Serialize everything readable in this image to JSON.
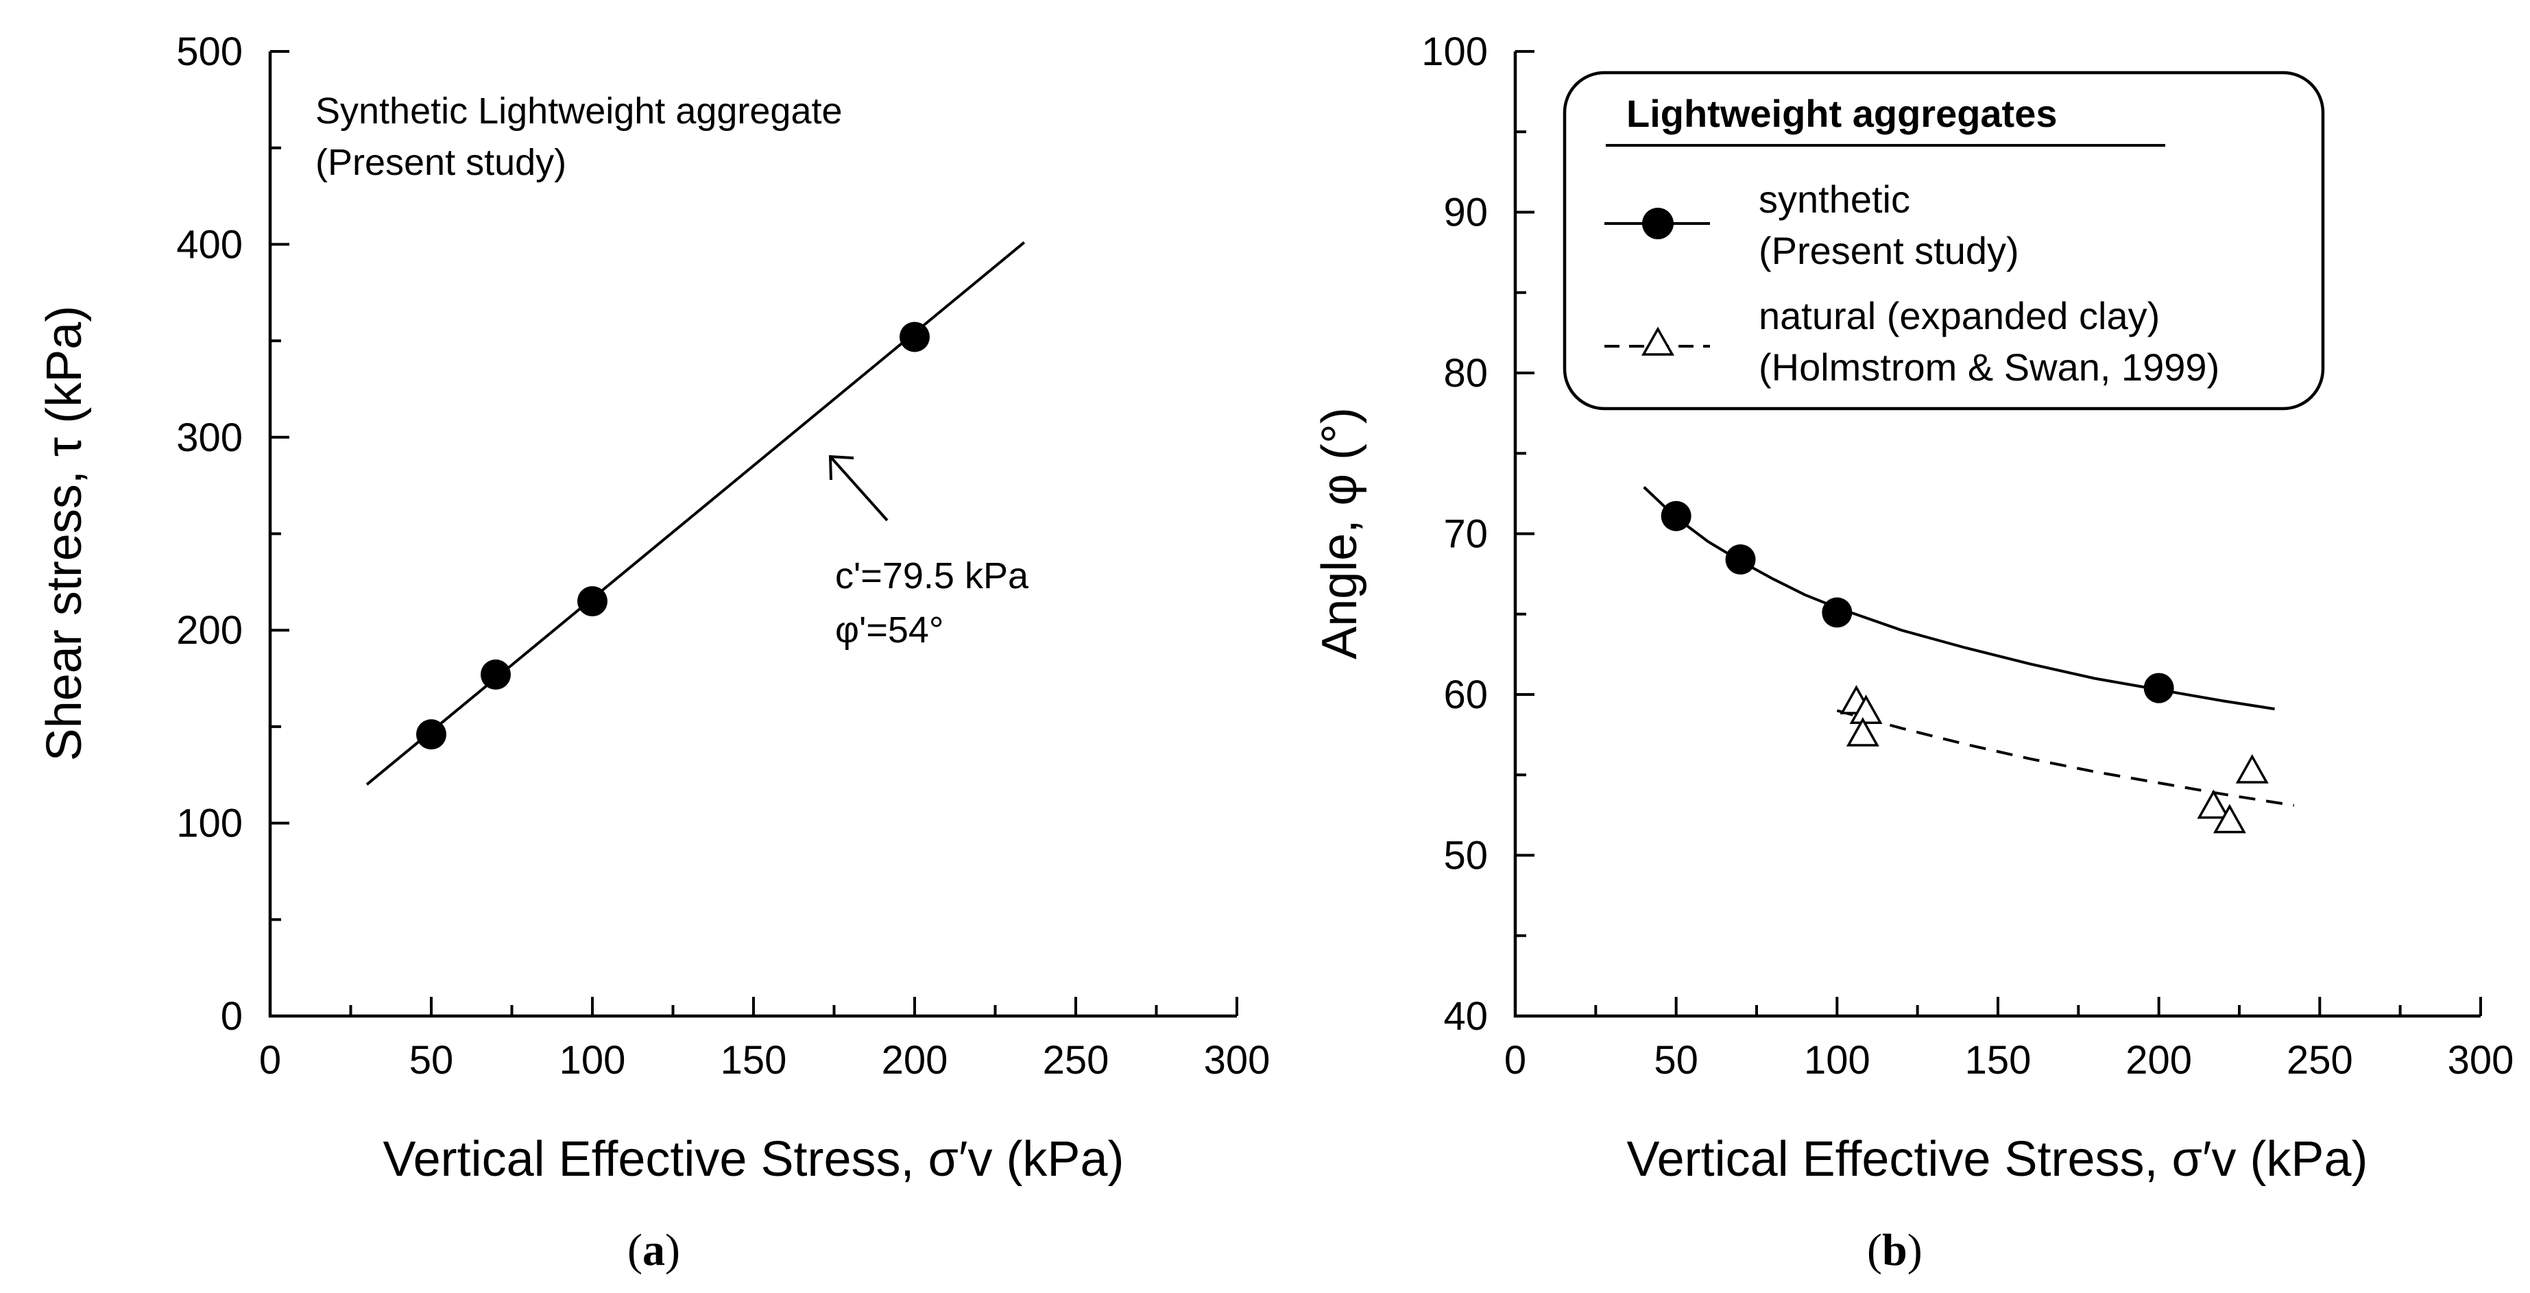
{
  "chart_data": [
    {
      "panel": "a",
      "type": "scatter",
      "xlabel": "Vertical Effective Stress, σ′v (kPa)",
      "ylabel": "Shear stress, τ (kPa)",
      "xlim": [
        0,
        300
      ],
      "ylim": [
        0,
        500
      ],
      "xticks": [
        "0",
        "50",
        "100",
        "150",
        "200",
        "250",
        "300"
      ],
      "yticks": [
        "0",
        "100",
        "200",
        "300",
        "400",
        "500"
      ],
      "caption": "a",
      "annotation_title": [
        "Synthetic Lightweight aggregate",
        "(Present study)"
      ],
      "fit_annotation": [
        "c'=79.5 kPa",
        "φ'=54°"
      ],
      "series": [
        {
          "name": "synthetic",
          "marker": "filled-circle",
          "x": [
            50,
            70,
            100,
            200
          ],
          "y": [
            146,
            177,
            215,
            352
          ]
        }
      ],
      "fit_line": {
        "style": "solid",
        "x": [
          30,
          234
        ],
        "y": [
          120,
          401
        ]
      }
    },
    {
      "panel": "b",
      "type": "scatter",
      "xlabel": "Vertical Effective Stress, σ′v (kPa)",
      "ylabel": "Angle, φ (°)",
      "xlim": [
        0,
        300
      ],
      "ylim": [
        40,
        100
      ],
      "xticks": [
        "0",
        "50",
        "100",
        "150",
        "200",
        "250",
        "300"
      ],
      "yticks": [
        "40",
        "50",
        "60",
        "70",
        "80",
        "90",
        "100"
      ],
      "caption": "b",
      "legend": {
        "title": "Lightweight aggregates",
        "position": "top-right",
        "entries": [
          {
            "label": "synthetic",
            "sublabel": "(Present study)",
            "marker": "filled-circle",
            "line": "solid"
          },
          {
            "label": "natural (expanded clay)",
            "sublabel": "(Holmstrom & Swan, 1999)",
            "marker": "open-triangle",
            "line": "dashed"
          }
        ]
      },
      "series": [
        {
          "name": "synthetic",
          "marker": "filled-circle",
          "x": [
            50,
            70,
            100,
            200
          ],
          "y": [
            71.1,
            68.4,
            65.1,
            60.4
          ]
        },
        {
          "name": "natural (expanded clay)",
          "marker": "open-triangle",
          "x": [
            106,
            109,
            108,
            217,
            222,
            229
          ],
          "y": [
            59.5,
            58.9,
            57.5,
            53.0,
            52.1,
            55.2
          ]
        }
      ],
      "fit_curves": [
        {
          "series": "synthetic",
          "style": "solid",
          "x": [
            40,
            50,
            60,
            70,
            80,
            90,
            100,
            120,
            140,
            160,
            180,
            200,
            220,
            236
          ],
          "y": [
            72.9,
            71.0,
            69.5,
            68.3,
            67.2,
            66.2,
            65.4,
            64.0,
            62.9,
            61.9,
            61.0,
            60.3,
            59.6,
            59.1
          ]
        },
        {
          "series": "natural (expanded clay)",
          "style": "dashed",
          "x": [
            100,
            120,
            140,
            160,
            180,
            200,
            220,
            242
          ],
          "y": [
            59.0,
            57.9,
            56.9,
            56.0,
            55.2,
            54.5,
            53.8,
            53.1
          ]
        }
      ]
    }
  ]
}
